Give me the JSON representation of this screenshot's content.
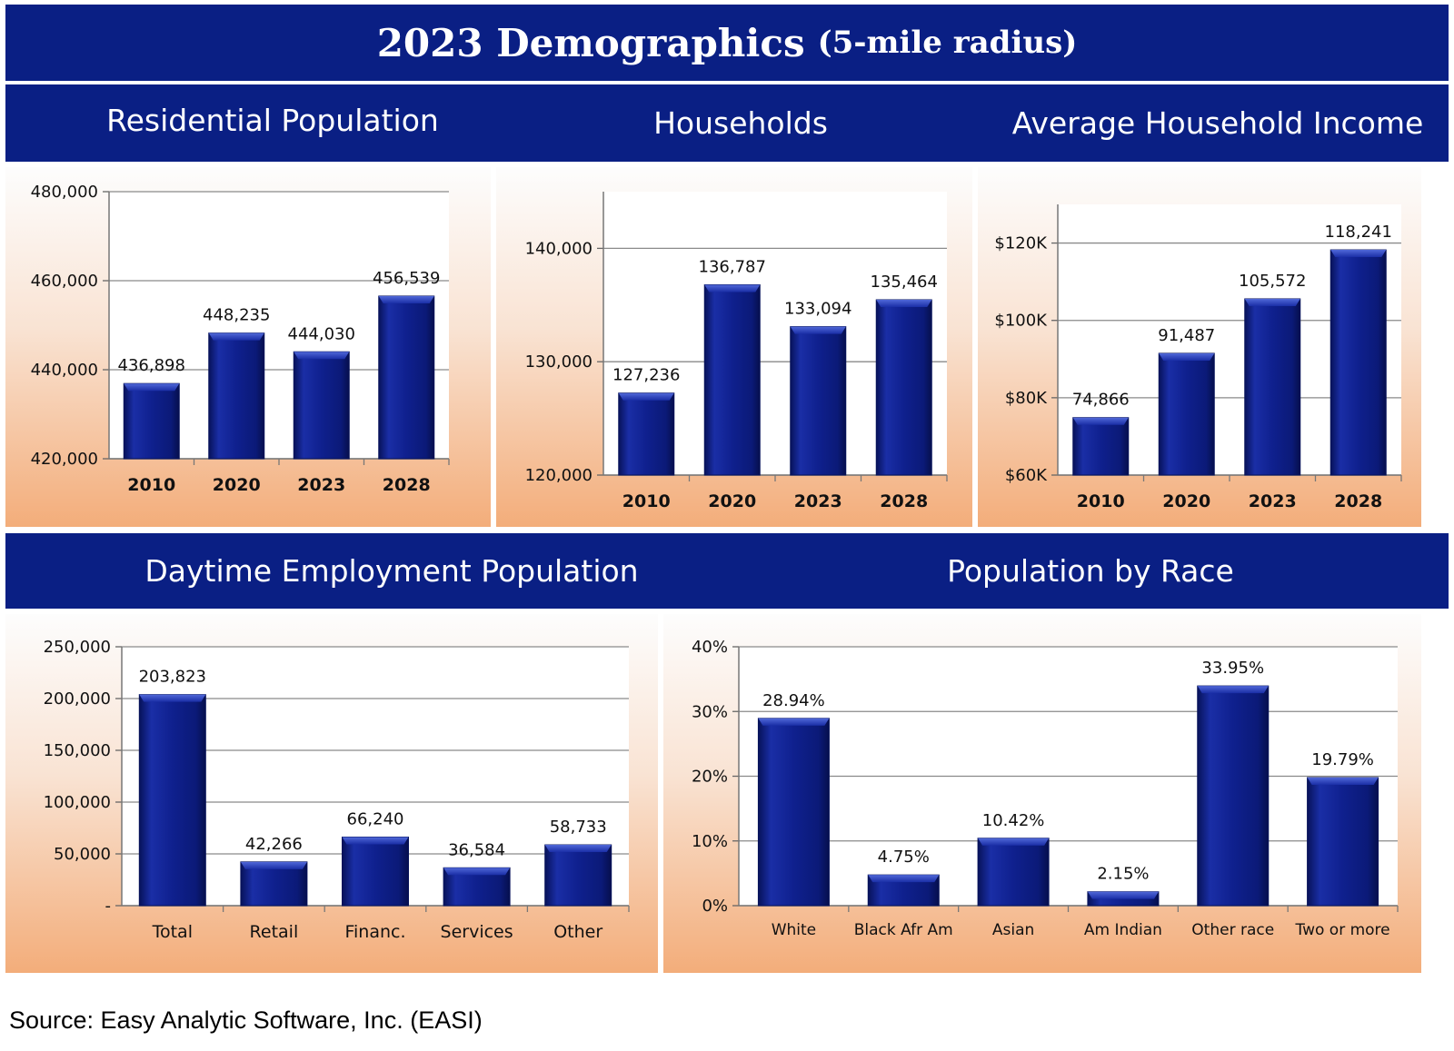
{
  "page": {
    "title_main": "2023 Demographics",
    "title_sub": "(5-mile radius)",
    "source": "Source: Easy Analytic Software, Inc. (EASI)"
  },
  "colors": {
    "band": "#0a1f84",
    "bar": "#0f208e",
    "bar_light": "#3a52c8",
    "bar_dark": "#07125a"
  },
  "chart_data": [
    {
      "type": "bar",
      "title": "Residential Population",
      "categories": [
        "2010",
        "2020",
        "2023",
        "2028"
      ],
      "values": [
        436898,
        448235,
        444030,
        456539
      ],
      "value_labels": [
        "436,898",
        "448,235",
        "444,030",
        "456,539"
      ],
      "ylim": [
        420000,
        480000
      ],
      "yticks": [
        420000,
        440000,
        460000,
        480000
      ],
      "ytick_labels": [
        "420,000",
        "440,000",
        "460,000",
        "480,000"
      ],
      "grid": true,
      "bold_categories": true
    },
    {
      "type": "bar",
      "title": "Households",
      "categories": [
        "2010",
        "2020",
        "2023",
        "2028"
      ],
      "values": [
        127236,
        136787,
        133094,
        135464
      ],
      "value_labels": [
        "127,236",
        "136,787",
        "133,094",
        "135,464"
      ],
      "ylim": [
        120000,
        145000
      ],
      "yticks": [
        120000,
        130000,
        140000
      ],
      "ytick_labels": [
        "120,000",
        "130,000",
        "140,000"
      ],
      "grid": true,
      "bold_categories": true
    },
    {
      "type": "bar",
      "title": "Average Household Income",
      "categories": [
        "2010",
        "2020",
        "2023",
        "2028"
      ],
      "values": [
        74866,
        91487,
        105572,
        118241
      ],
      "value_labels": [
        "74,866",
        "91,487",
        "105,572",
        "118,241"
      ],
      "ylim": [
        60000,
        130000
      ],
      "yticks": [
        60000,
        80000,
        100000,
        120000
      ],
      "ytick_labels": [
        "$60K",
        "$80K",
        "$100K",
        "$120K"
      ],
      "grid": true,
      "bold_categories": true
    },
    {
      "type": "bar",
      "title": "Daytime Employment Population",
      "categories": [
        "Total",
        "Retail",
        "Financ.",
        "Services",
        "Other"
      ],
      "values": [
        203823,
        42266,
        66240,
        36584,
        58733
      ],
      "value_labels": [
        "203,823",
        "42,266",
        "66,240",
        "36,584",
        "58,733"
      ],
      "ylim": [
        0,
        250000
      ],
      "yticks": [
        0,
        50000,
        100000,
        150000,
        200000,
        250000
      ],
      "ytick_labels": [
        "-",
        "50,000",
        "100,000",
        "150,000",
        "200,000",
        "250,000"
      ],
      "grid": true,
      "bold_categories": false
    },
    {
      "type": "bar",
      "title": "Population by Race",
      "categories": [
        "White",
        "Black Afr Am",
        "Asian",
        "Am Indian",
        "Other race",
        "Two or more"
      ],
      "values": [
        28.94,
        4.75,
        10.42,
        2.15,
        33.95,
        19.79
      ],
      "value_labels": [
        "28.94%",
        "4.75%",
        "10.42%",
        "2.15%",
        "33.95%",
        "19.79%"
      ],
      "ylim": [
        0,
        40
      ],
      "yticks": [
        0,
        10,
        20,
        30,
        40
      ],
      "ytick_labels": [
        "0%",
        "10%",
        "20%",
        "30%",
        "40%"
      ],
      "grid": true,
      "bold_categories": false
    }
  ]
}
